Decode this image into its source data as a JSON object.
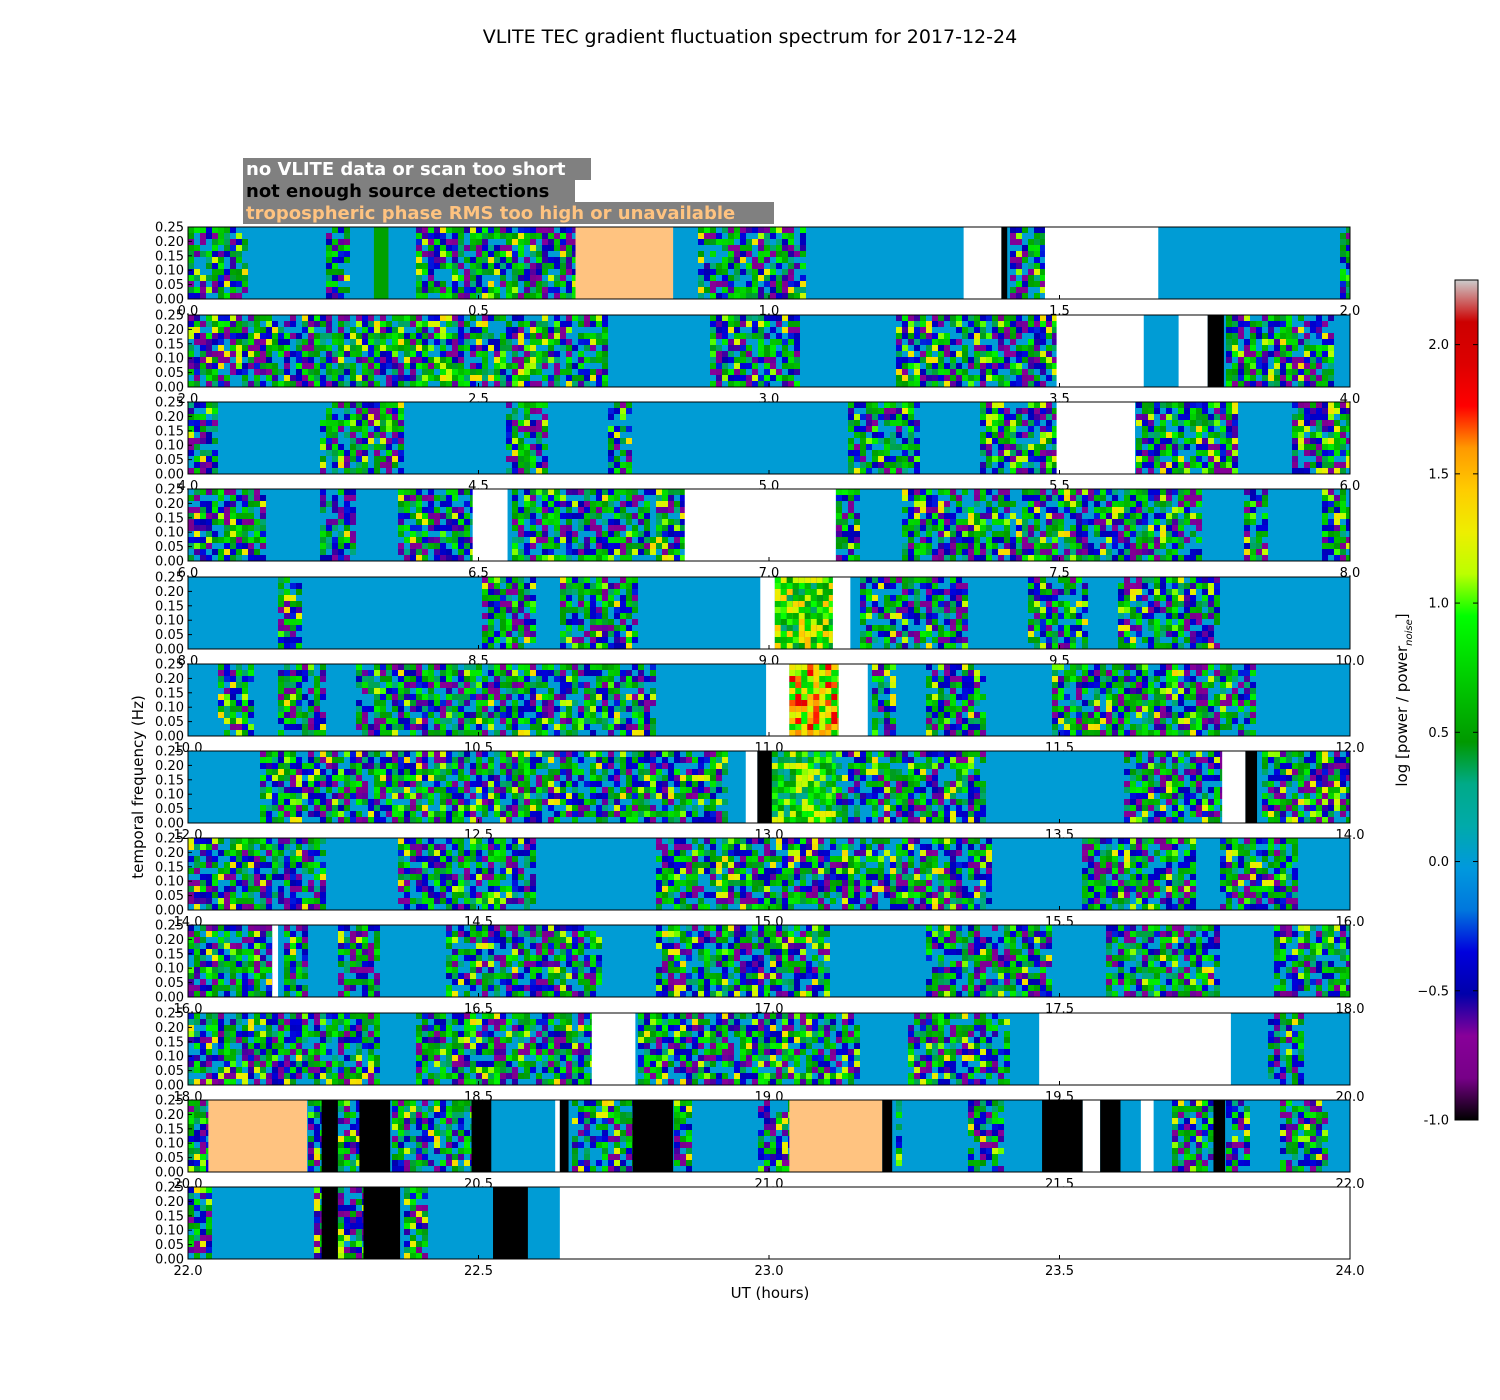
{
  "chart_data": {
    "type": "heatmap",
    "title": "VLITE TEC gradient fluctuation spectrum for 2017-12-24",
    "xlabel": "UT (hours)",
    "ylabel": "temporal frequency (Hz)",
    "ylim": [
      0,
      0.25
    ],
    "yticks": [
      "0.00",
      "0.05",
      "0.10",
      "0.15",
      "0.20",
      "0.25"
    ],
    "grid": false,
    "legend": [
      {
        "text": "no VLITE data or scan too short",
        "text_color": "#ffffff",
        "box_color": "#808080"
      },
      {
        "text": "not enough source detections",
        "text_color": "#000000",
        "box_color": "#808080"
      },
      {
        "text": "tropospheric phase RMS too high or unavailable",
        "text_color": "#ffc380",
        "box_color": "#808080"
      }
    ],
    "legend_placement": "top-left",
    "category_colors": {
      "no_data": "#ffffff",
      "few_detections": "#000000",
      "trop_rms": "#ffc380"
    },
    "colorbar": {
      "label": "log [power / power",
      "label_sub": "noise",
      "label_end": "]",
      "min": -1.0,
      "max": 2.25,
      "ticks": [
        "-1.0",
        "−0.5",
        "0.0",
        "0.5",
        "1.0",
        "1.5",
        "2.0"
      ],
      "tick_values": [
        -1.0,
        -0.5,
        0.0,
        0.5,
        1.0,
        1.5,
        2.0
      ],
      "colormap": "nipy_spectral"
    },
    "panels": [
      {
        "xlim": [
          0,
          2
        ],
        "xticks": [
          "0.0",
          "0.5",
          "1.0",
          "1.5",
          "2.0"
        ],
        "segments": [
          {
            "x": [
              0.32,
              0.345
            ],
            "type": "flat",
            "value": 0.5
          },
          {
            "x": [
              0.667,
              0.835
            ],
            "type": "trop_rms"
          },
          {
            "x": [
              1.335,
              1.4
            ],
            "type": "no_data"
          },
          {
            "x": [
              1.4,
              1.41
            ],
            "type": "few_detections"
          },
          {
            "x": [
              1.475,
              1.67
            ],
            "type": "no_data"
          }
        ]
      },
      {
        "xlim": [
          2,
          4
        ],
        "xticks": [
          "2.0",
          "2.5",
          "3.0",
          "3.5",
          "4.0"
        ],
        "segments": [
          {
            "x": [
              3.495,
              3.645
            ],
            "type": "no_data"
          },
          {
            "x": [
              3.705,
              3.755
            ],
            "type": "no_data"
          },
          {
            "x": [
              3.755,
              3.783
            ],
            "type": "few_detections"
          }
        ]
      },
      {
        "xlim": [
          4,
          6
        ],
        "xticks": [
          "4.0",
          "4.5",
          "5.0",
          "5.5",
          "6.0"
        ],
        "segments": [
          {
            "x": [
              5.495,
              5.63
            ],
            "type": "no_data"
          }
        ]
      },
      {
        "xlim": [
          6,
          8
        ],
        "xticks": [
          "6.0",
          "6.5",
          "7.0",
          "7.5",
          "8.0"
        ],
        "segments": [
          {
            "x": [
              6.49,
              6.55
            ],
            "type": "no_data"
          },
          {
            "x": [
              6.855,
              7.115
            ],
            "type": "no_data"
          }
        ]
      },
      {
        "xlim": [
          8,
          10
        ],
        "xticks": [
          "8.0",
          "8.5",
          "9.0",
          "9.5",
          "10.0"
        ],
        "segments": [
          {
            "x": [
              8.985,
              9.01
            ],
            "type": "no_data"
          },
          {
            "x": [
              9.01,
              9.11
            ],
            "type": "hot",
            "value": 0.9
          },
          {
            "x": [
              9.11,
              9.14
            ],
            "type": "no_data"
          }
        ]
      },
      {
        "xlim": [
          10,
          12
        ],
        "xticks": [
          "10.0",
          "10.5",
          "11.0",
          "11.5",
          "12.0"
        ],
        "segments": [
          {
            "x": [
              10.995,
              11.035
            ],
            "type": "no_data"
          },
          {
            "x": [
              11.035,
              11.12
            ],
            "type": "hot",
            "value": 1.3
          },
          {
            "x": [
              11.12,
              11.17
            ],
            "type": "no_data"
          }
        ]
      },
      {
        "xlim": [
          12,
          14
        ],
        "xticks": [
          "12.0",
          "12.5",
          "13.0",
          "13.5",
          "14.0"
        ],
        "segments": [
          {
            "x": [
              12.96,
              12.98
            ],
            "type": "no_data"
          },
          {
            "x": [
              12.98,
              13.005
            ],
            "type": "few_detections"
          },
          {
            "x": [
              13.005,
              13.115
            ],
            "type": "hot",
            "value": 0.7
          },
          {
            "x": [
              13.78,
              13.82
            ],
            "type": "no_data"
          },
          {
            "x": [
              13.82,
              13.84
            ],
            "type": "few_detections"
          }
        ]
      },
      {
        "xlim": [
          14,
          16
        ],
        "xticks": [
          "14.0",
          "14.5",
          "15.0",
          "15.5",
          "16.0"
        ],
        "segments": []
      },
      {
        "xlim": [
          16,
          18
        ],
        "xticks": [
          "16.0",
          "16.5",
          "17.0",
          "17.5",
          "18.0"
        ],
        "segments": [
          {
            "x": [
              16.145,
              16.155
            ],
            "type": "no_data"
          }
        ]
      },
      {
        "xlim": [
          18,
          20
        ],
        "xticks": [
          "18.0",
          "18.5",
          "19.0",
          "19.5",
          "20.0"
        ],
        "segments": [
          {
            "x": [
              18.695,
              18.77
            ],
            "type": "no_data"
          },
          {
            "x": [
              19.465,
              19.795
            ],
            "type": "no_data"
          }
        ]
      },
      {
        "xlim": [
          20,
          22
        ],
        "xticks": [
          "20.0",
          "20.5",
          "21.0",
          "21.5",
          "22.0"
        ],
        "segments": [
          {
            "x": [
              20.035,
              20.205
            ],
            "type": "trop_rms"
          },
          {
            "x": [
              20.23,
              20.258
            ],
            "type": "few_detections"
          },
          {
            "x": [
              20.295,
              20.348
            ],
            "type": "few_detections"
          },
          {
            "x": [
              20.488,
              20.522
            ],
            "type": "few_detections"
          },
          {
            "x": [
              20.632,
              20.64
            ],
            "type": "no_data"
          },
          {
            "x": [
              20.64,
              20.655
            ],
            "type": "few_detections"
          },
          {
            "x": [
              20.765,
              20.835
            ],
            "type": "few_detections"
          },
          {
            "x": [
              21.035,
              21.195
            ],
            "type": "trop_rms"
          },
          {
            "x": [
              21.195,
              21.212
            ],
            "type": "few_detections"
          },
          {
            "x": [
              21.47,
              21.54
            ],
            "type": "few_detections"
          },
          {
            "x": [
              21.54,
              21.57
            ],
            "type": "no_data"
          },
          {
            "x": [
              21.57,
              21.605
            ],
            "type": "few_detections"
          },
          {
            "x": [
              21.64,
              21.662
            ],
            "type": "no_data"
          },
          {
            "x": [
              21.765,
              21.785
            ],
            "type": "few_detections"
          }
        ]
      },
      {
        "xlim": [
          22,
          24
        ],
        "xticks": [
          "22.0",
          "22.5",
          "23.0",
          "23.5",
          "24.0"
        ],
        "segments": [
          {
            "x": [
              22.23,
              22.258
            ],
            "type": "few_detections"
          },
          {
            "x": [
              22.302,
              22.365
            ],
            "type": "few_detections"
          },
          {
            "x": [
              22.525,
              22.585
            ],
            "type": "few_detections"
          },
          {
            "x": [
              22.64,
              24.0
            ],
            "type": "no_data"
          }
        ]
      }
    ]
  }
}
